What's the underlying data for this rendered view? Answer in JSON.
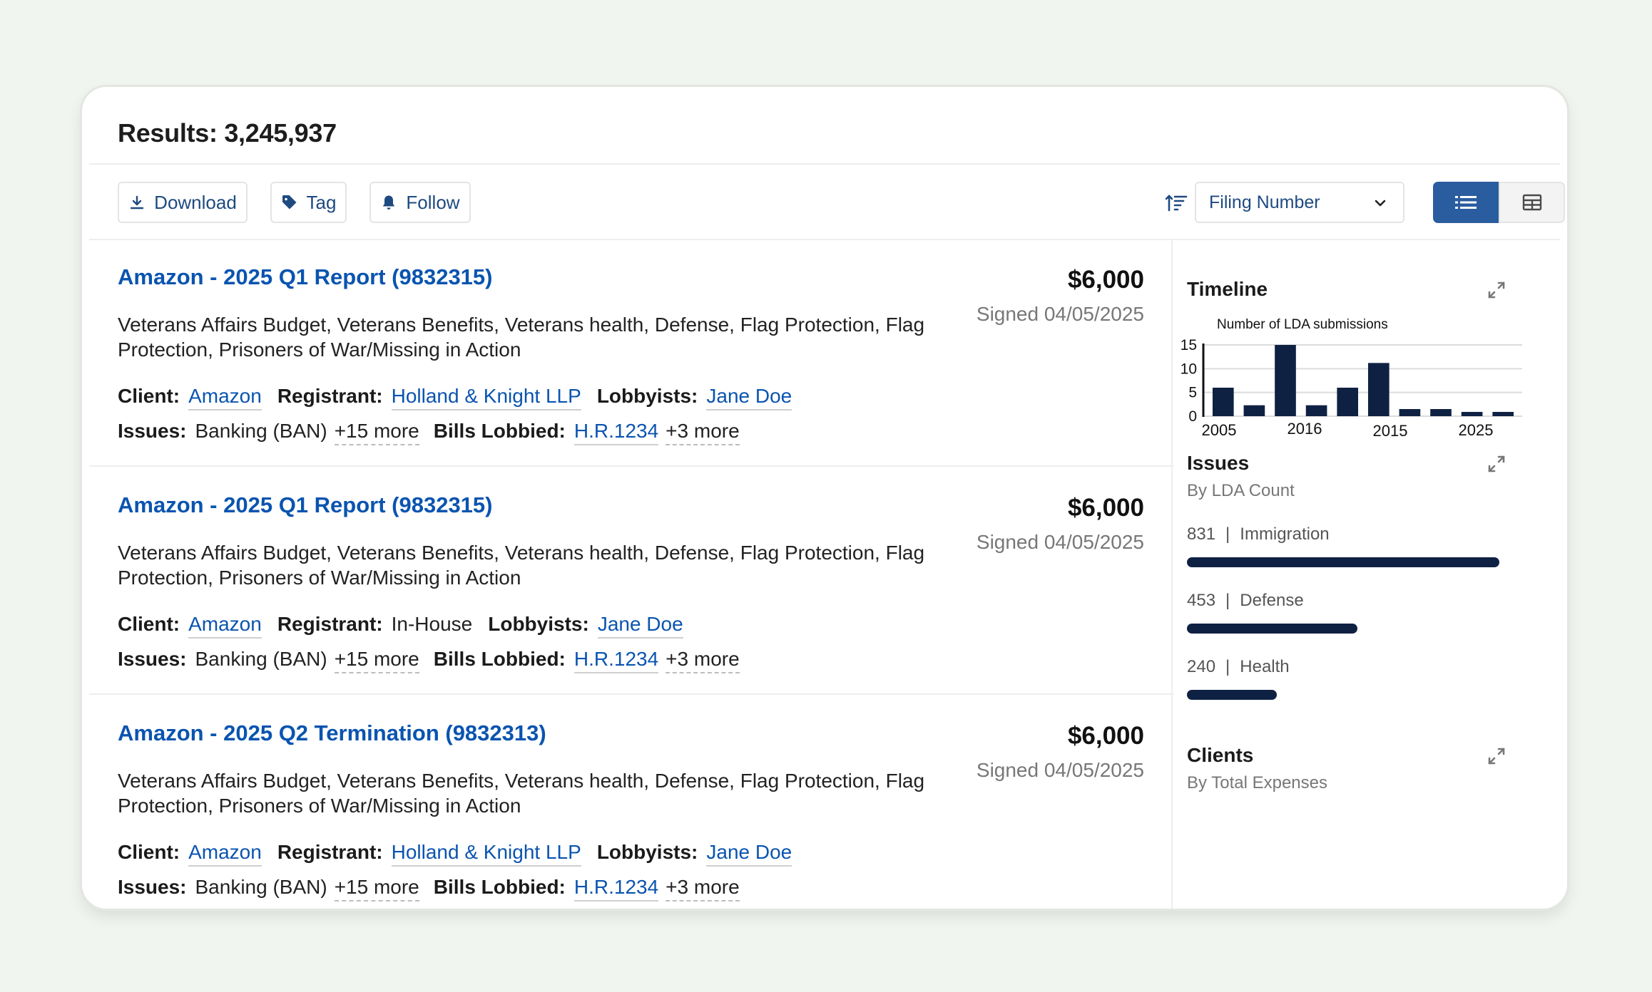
{
  "header": {
    "results_label": "Results: 3,245,937"
  },
  "toolbar": {
    "download_label": "Download",
    "tag_label": "Tag",
    "follow_label": "Follow",
    "sort_select_value": "Filing Number"
  },
  "colors": {
    "accent": "#0a54b0",
    "toggle_active": "#2a5d9f",
    "chart_bar": "#0f2143",
    "background": "#f0f5ef"
  },
  "results": [
    {
      "title": "Amazon - 2025 Q1 Report (9832315)",
      "amount": "$6,000",
      "signed": "Signed 04/05/2025",
      "description": "Veterans Affairs Budget, Veterans Benefits, Veterans health, Defense, Flag Protection, Flag Protection, Prisoners of War/Missing in Action",
      "client_label": "Client:",
      "client": "Amazon",
      "registrant_label": "Registrant:",
      "registrant": "Holland & Knight LLP",
      "lobbyists_label": "Lobbyists:",
      "lobbyists": "Jane Doe",
      "issues_label": "Issues:",
      "issues": "Banking (BAN)",
      "issues_more": "+15 more",
      "bills_label": "Bills Lobbied:",
      "bills": "H.R.1234",
      "bills_more": "+3 more"
    },
    {
      "title": "Amazon - 2025 Q1 Report (9832315)",
      "amount": "$6,000",
      "signed": "Signed 04/05/2025",
      "description": "Veterans Affairs Budget, Veterans Benefits, Veterans health, Defense, Flag Protection, Flag Protection, Prisoners of War/Missing in Action",
      "client_label": "Client:",
      "client": "Amazon",
      "registrant_label": "Registrant:",
      "registrant": "In-House",
      "lobbyists_label": "Lobbyists:",
      "lobbyists": "Jane Doe",
      "issues_label": "Issues:",
      "issues": "Banking (BAN)",
      "issues_more": "+15 more",
      "bills_label": "Bills Lobbied:",
      "bills": "H.R.1234",
      "bills_more": "+3 more"
    },
    {
      "title": "Amazon - 2025 Q2 Termination (9832313)",
      "amount": "$6,000",
      "signed": "Signed 04/05/2025",
      "description": "Veterans Affairs Budget, Veterans Benefits, Veterans health, Defense, Flag Protection, Flag Protection, Prisoners of War/Missing in Action",
      "client_label": "Client:",
      "client": "Amazon",
      "registrant_label": "Registrant:",
      "registrant": "Holland & Knight LLP",
      "lobbyists_label": "Lobbyists:",
      "lobbyists": "Jane Doe",
      "issues_label": "Issues:",
      "issues": "Banking (BAN)",
      "issues_more": "+15 more",
      "bills_label": "Bills Lobbied:",
      "bills": "H.R.1234",
      "bills_more": "+3 more"
    }
  ],
  "side": {
    "timeline": {
      "title": "Timeline"
    },
    "issues": {
      "title": "Issues",
      "subtitle": "By LDA Count",
      "items": [
        {
          "count": "831",
          "name": "Immigration",
          "value": 831
        },
        {
          "count": "453",
          "name": "Defense",
          "value": 453
        },
        {
          "count": "240",
          "name": "Health",
          "value": 240
        }
      ]
    },
    "clients": {
      "title": "Clients",
      "subtitle": "By Total Expenses"
    }
  },
  "chart_data": {
    "type": "bar",
    "title": "Number of LDA submissions",
    "xlabel": "",
    "ylabel": "",
    "ylim": [
      0,
      15
    ],
    "yticks": [
      "0",
      "5",
      "10",
      "15"
    ],
    "xtick_labels": [
      "2005",
      "2016",
      "2015",
      "2025"
    ],
    "values": [
      6,
      2.3,
      15,
      2.3,
      6,
      11.2,
      1.5,
      1.5,
      0.9,
      0.9
    ],
    "grid": true
  }
}
